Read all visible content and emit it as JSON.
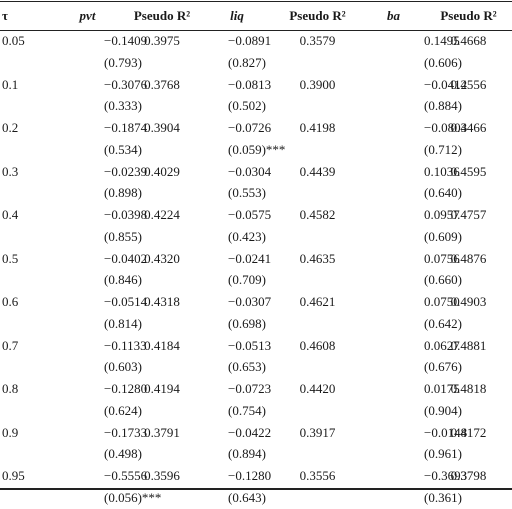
{
  "headers": {
    "tau": "τ",
    "pvt": "pvt",
    "pr2_1": "Pseudo R²",
    "liq": "liq",
    "pr2_2": "Pseudo R²",
    "ba": "ba",
    "pr2_3": "Pseudo R²"
  },
  "rows": [
    {
      "tau": "0.05",
      "pvt": "−0.1409",
      "pvt_p": "(0.793)",
      "r2a": "0.3975",
      "liq": "−0.0891",
      "liq_p": "(0.827)",
      "r2b": "0.3579",
      "ba": "0.1495",
      "ba_p": "(0.606)",
      "r2c": "0.4668"
    },
    {
      "tau": "0.1",
      "pvt": "−0.3076",
      "pvt_p": "(0.333)",
      "r2a": "0.3768",
      "liq": "−0.0813",
      "liq_p": "(0.502)",
      "r2b": "0.3900",
      "ba": "−0.0412",
      "ba_p": "(0.884)",
      "r2c": "0.4556"
    },
    {
      "tau": "0.2",
      "pvt": "−0.1874",
      "pvt_p": "(0.534)",
      "r2a": "0.3904",
      "liq": "−0.0726",
      "liq_p": "(0.059)***",
      "r2b": "0.4198",
      "ba": "−0.0803",
      "ba_p": "(0.712)",
      "r2c": "0.4466"
    },
    {
      "tau": "0.3",
      "pvt": "−0.0239",
      "pvt_p": "(0.898)",
      "r2a": "0.4029",
      "liq": "−0.0304",
      "liq_p": "(0.553)",
      "r2b": "0.4439",
      "ba": "0.1036",
      "ba_p": "(0.640)",
      "r2c": "0.4595"
    },
    {
      "tau": "0.4",
      "pvt": "−0.0398",
      "pvt_p": "(0.855)",
      "r2a": "0.4224",
      "liq": "−0.0575",
      "liq_p": "(0.423)",
      "r2b": "0.4582",
      "ba": "0.0957",
      "ba_p": "(0.609)",
      "r2c": "0.4757"
    },
    {
      "tau": "0.5",
      "pvt": "−0.0402",
      "pvt_p": "(0.846)",
      "r2a": "0.4320",
      "liq": "−0.0241",
      "liq_p": "(0.709)",
      "r2b": "0.4635",
      "ba": "0.0756",
      "ba_p": "(0.660)",
      "r2c": "0.4876"
    },
    {
      "tau": "0.6",
      "pvt": "−0.0514",
      "pvt_p": "(0.814)",
      "r2a": "0.4318",
      "liq": "−0.0307",
      "liq_p": "(0.698)",
      "r2b": "0.4621",
      "ba": "0.0750",
      "ba_p": "(0.642)",
      "r2c": "0.4903"
    },
    {
      "tau": "0.7",
      "pvt": "−0.1133",
      "pvt_p": "(0.603)",
      "r2a": "0.4184",
      "liq": "−0.0513",
      "liq_p": "(0.653)",
      "r2b": "0.4608",
      "ba": "0.0627",
      "ba_p": "(0.676)",
      "r2c": "0.4881"
    },
    {
      "tau": "0.8",
      "pvt": "−0.1280",
      "pvt_p": "(0.624)",
      "r2a": "0.4194",
      "liq": "−0.0723",
      "liq_p": "(0.754)",
      "r2b": "0.4420",
      "ba": "0.0175",
      "ba_p": "(0.904)",
      "r2c": "0.4818"
    },
    {
      "tau": "0.9",
      "pvt": "−0.1733",
      "pvt_p": "(0.498)",
      "r2a": "0.3791",
      "liq": "−0.0422",
      "liq_p": "(0.894)",
      "r2b": "0.3917",
      "ba": "−0.0148",
      "ba_p": "(0.961)",
      "r2c": "0.4172"
    },
    {
      "tau": "0.95",
      "pvt": "−0.5556",
      "pvt_p": "(0.056)***",
      "r2a": "0.3596",
      "liq": "−0.1280",
      "liq_p": "(0.643)",
      "r2b": "0.3556",
      "ba": "−0.3693",
      "ba_p": "(0.361)",
      "r2c": "0.3798"
    }
  ]
}
